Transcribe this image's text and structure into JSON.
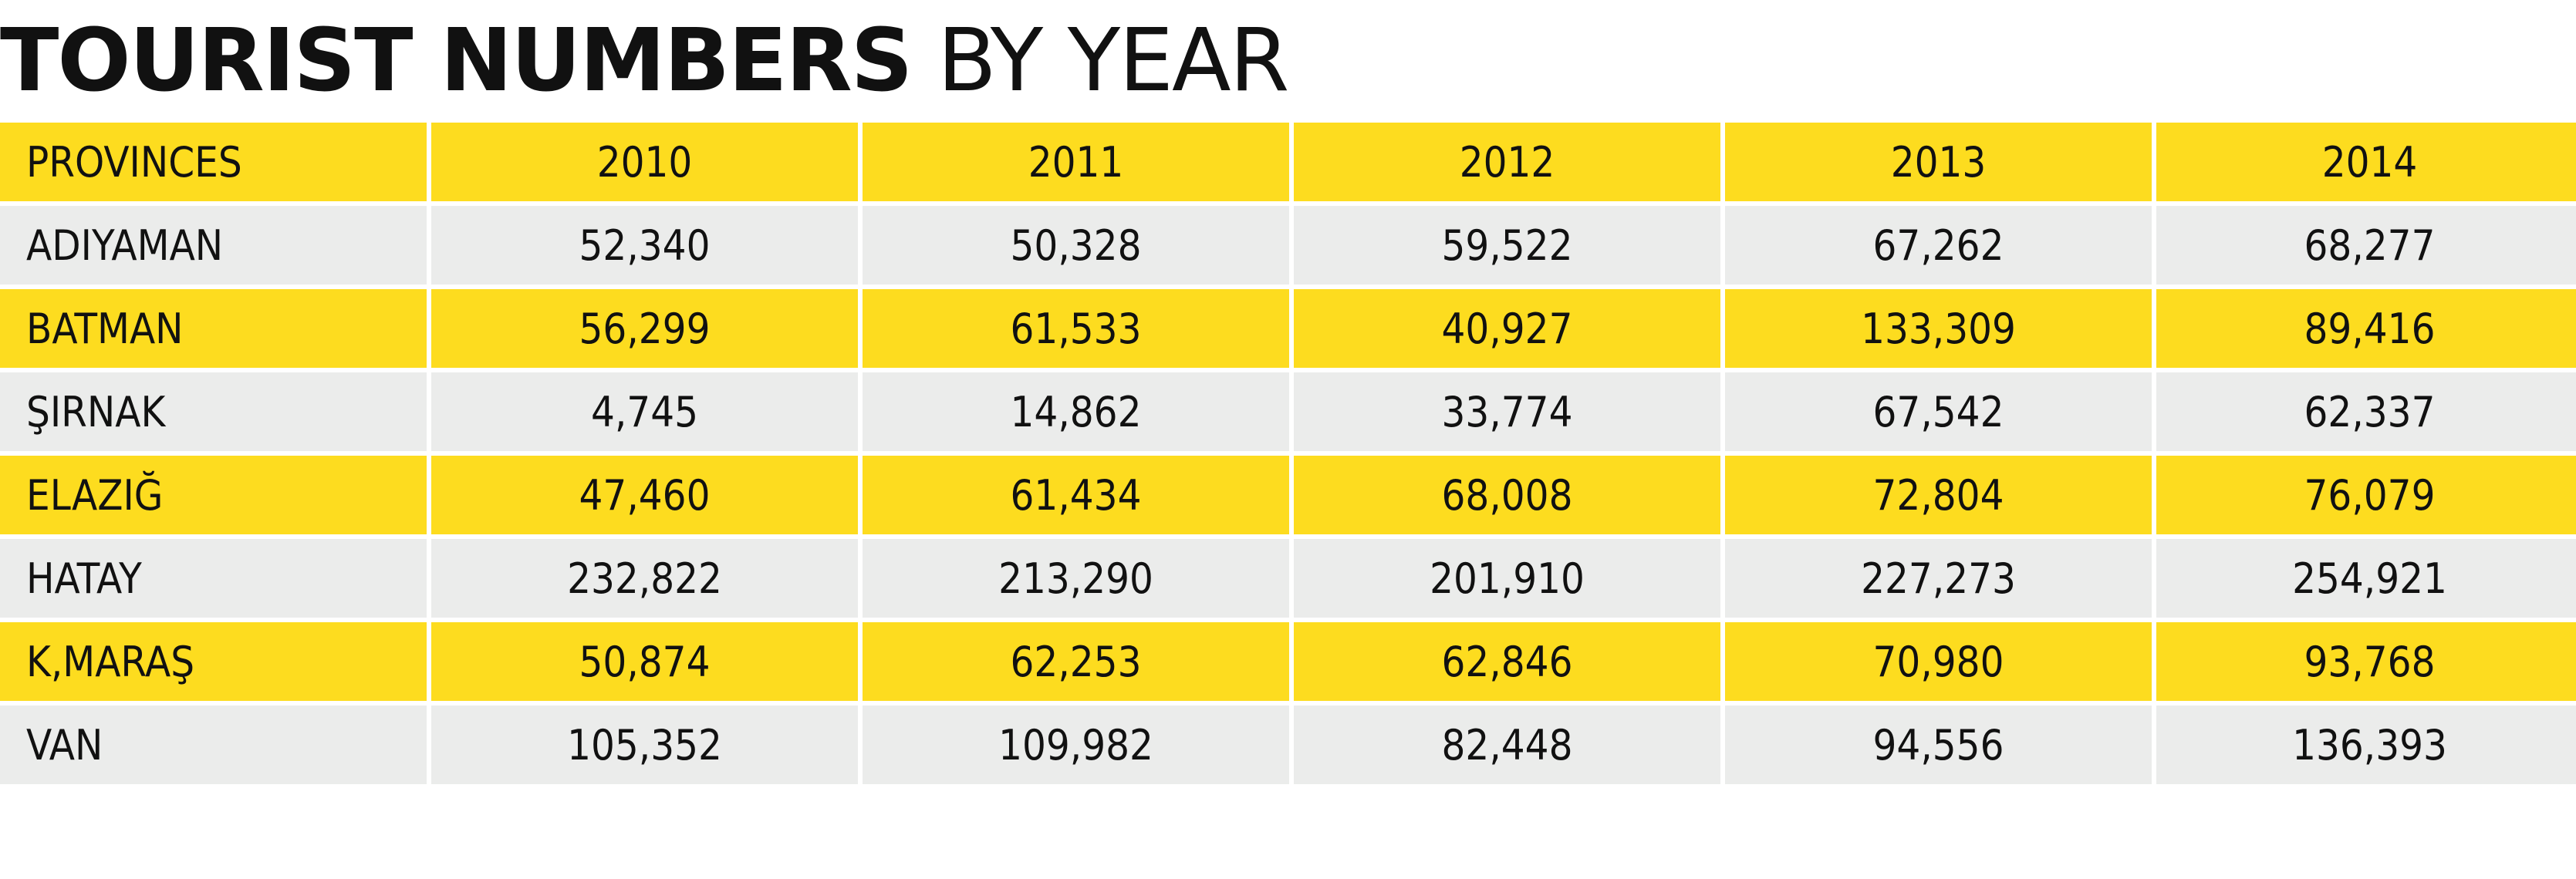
{
  "title": {
    "bold": "TOURIST NUMBERS",
    "light": "BY YEAR"
  },
  "colors": {
    "yellow": "#fddc1f",
    "grey": "#ebeceb",
    "text": "#111111"
  },
  "chart_data": {
    "type": "table",
    "title": "TOURIST NUMBERS BY YEAR",
    "columns": [
      "PROVINCES",
      "2010",
      "2011",
      "2012",
      "2013",
      "2014"
    ],
    "rows": [
      {
        "province": "ADIYAMAN",
        "values": [
          "52,340",
          "50,328",
          "59,522",
          "67,262",
          "68,277"
        ]
      },
      {
        "province": "BATMAN",
        "values": [
          "56,299",
          "61,533",
          "40,927",
          "133,309",
          "89,416"
        ]
      },
      {
        "province": "ŞIRNAK",
        "values": [
          "4,745",
          "14,862",
          "33,774",
          "67,542",
          "62,337"
        ]
      },
      {
        "province": "ELAZIĞ",
        "values": [
          "47,460",
          "61,434",
          "68,008",
          "72,804",
          "76,079"
        ]
      },
      {
        "province": "HATAY",
        "values": [
          "232,822",
          "213,290",
          "201,910",
          "227,273",
          "254,921"
        ]
      },
      {
        "province": "K,MARAŞ",
        "values": [
          "50,874",
          "62,253",
          "62,846",
          "70,980",
          "93,768"
        ]
      },
      {
        "province": "VAN",
        "values": [
          "105,352",
          "109,982",
          "82,448",
          "94,556",
          "136,393"
        ]
      }
    ]
  }
}
